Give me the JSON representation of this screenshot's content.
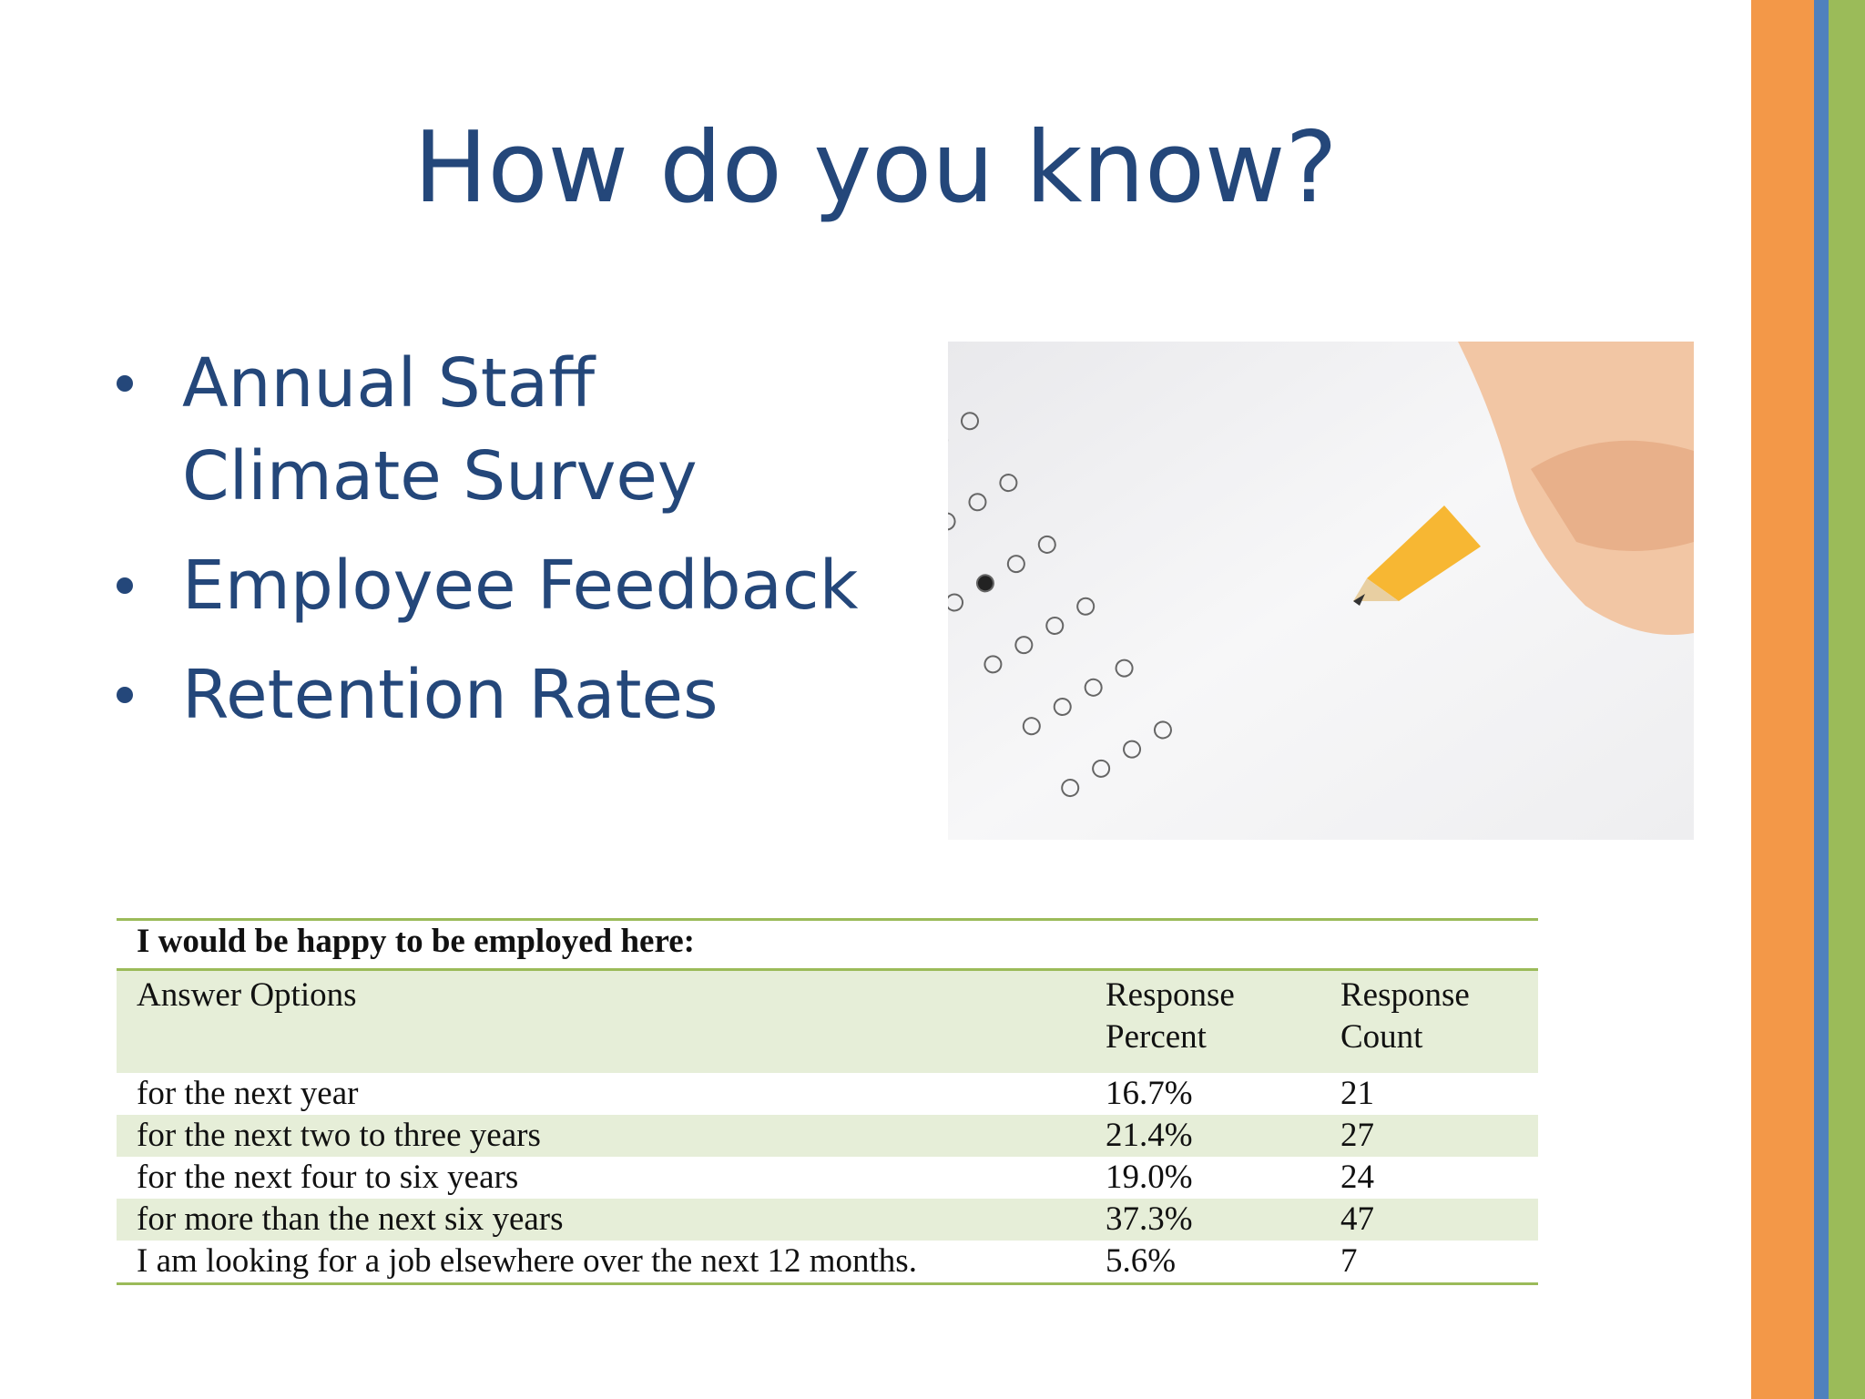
{
  "slide": {
    "title": "How do you know?",
    "bullets": [
      {
        "lines": [
          "Annual Staff",
          "Climate Survey"
        ]
      },
      {
        "lines": [
          "Employee Feedback"
        ]
      },
      {
        "lines": [
          "Retention Rates"
        ]
      }
    ],
    "table": {
      "caption": "I would be happy to be employed here:",
      "header": [
        "Answer Options",
        "Response Percent",
        "Response Count"
      ],
      "rows": [
        [
          "for the next year",
          "16.7%",
          "21"
        ],
        [
          "for the next two to three years",
          "21.4%",
          "27"
        ],
        [
          "for the next four to six years",
          "19.0%",
          "24"
        ],
        [
          "for more than the next six years",
          "37.3%",
          "47"
        ],
        [
          "I am looking for a job elsewhere over the next 12 months.",
          "5.6%",
          "7"
        ]
      ]
    }
  }
}
